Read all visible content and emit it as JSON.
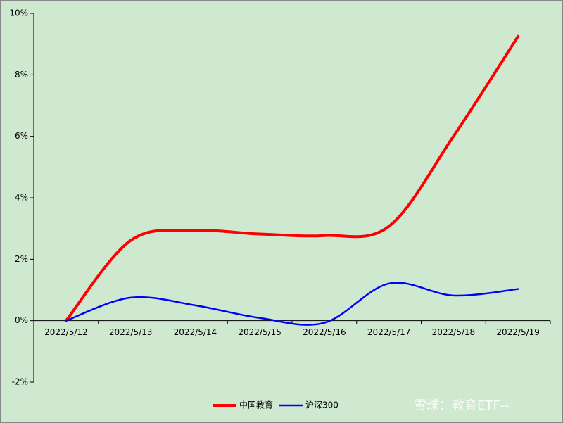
{
  "chart_data": {
    "type": "line",
    "categories": [
      "2022/5/12",
      "2022/5/13",
      "2022/5/14",
      "2022/5/15",
      "2022/5/16",
      "2022/5/17",
      "2022/5/18",
      "2022/5/19"
    ],
    "series": [
      {
        "name": "中国教育",
        "color": "#ff0000",
        "values": [
          0,
          2.61,
          2.93,
          2.82,
          2.77,
          3.07,
          6.0,
          9.25
        ]
      },
      {
        "name": "沪深300",
        "color": "#0000ff",
        "values": [
          0,
          0.75,
          0.5,
          0.09,
          -0.07,
          1.21,
          0.82,
          1.03
        ]
      }
    ],
    "ylim": [
      -2,
      10
    ],
    "yticks": [
      {
        "value": -2,
        "label": "-2%"
      },
      {
        "value": 0,
        "label": "0%"
      },
      {
        "value": 2,
        "label": "2%"
      },
      {
        "value": 4,
        "label": "4%"
      },
      {
        "value": 6,
        "label": "6%"
      },
      {
        "value": 8,
        "label": "8%"
      },
      {
        "value": 10,
        "label": "10%"
      }
    ],
    "smooth": true,
    "legend": "bottom",
    "watermark": "雪球：教育ETF--"
  }
}
